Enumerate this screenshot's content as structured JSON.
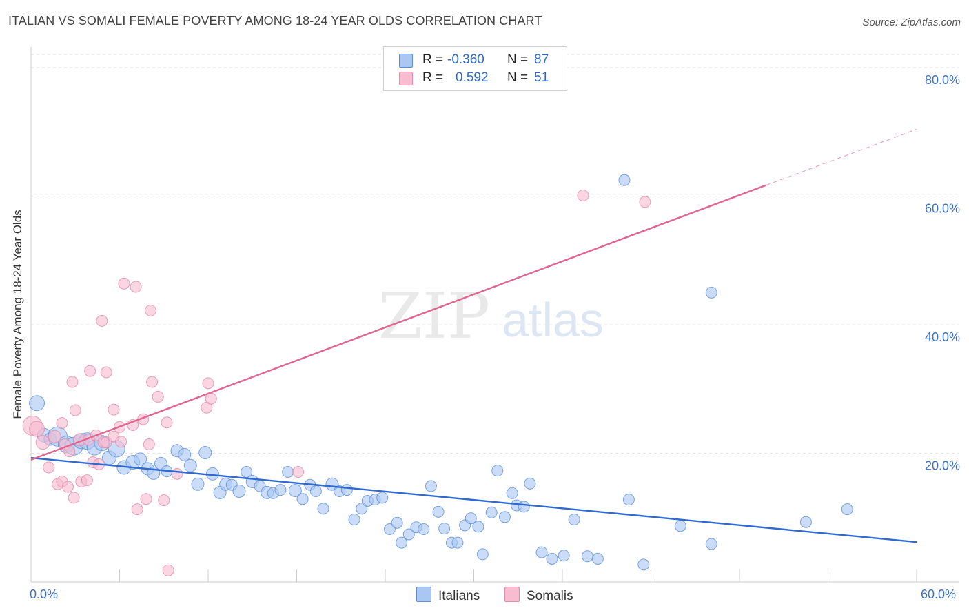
{
  "title": "ITALIAN VS SOMALI FEMALE POVERTY AMONG 18-24 YEAR OLDS CORRELATION CHART",
  "source": "Source: ZipAtlas.com",
  "watermark": {
    "zip": "ZIP",
    "atlas": "atlas"
  },
  "colors": {
    "italians_fill": "#a9c7f2",
    "italians_stroke": "#5b8fd9",
    "italians_line": "#2e6ad0",
    "somalis_fill": "#f7bcd0",
    "somalis_stroke": "#e58aa8",
    "somalis_line": "#e0658f",
    "axis_blue": "#3a6fc6",
    "grid": "#e2e2e2"
  },
  "legend_top": {
    "italians": {
      "r_label": "R =",
      "r_value": "-0.360",
      "n_label": "N =",
      "n_value": "87"
    },
    "somalis": {
      "r_label": "R =",
      "r_value": "0.592",
      "n_label": "N =",
      "n_value": "51"
    }
  },
  "legend_bottom": {
    "italians": "Italians",
    "somalis": "Somalis"
  },
  "chart_data": {
    "type": "scatter",
    "xlabel": "",
    "ylabel": "Female Poverty Among 18-24 Year Olds",
    "xlim": [
      0,
      60
    ],
    "ylim": [
      0,
      83
    ],
    "x_tick_labels": {
      "left": "0.0%",
      "right": "60.0%"
    },
    "y_ticks": [
      {
        "value": 20,
        "label": "20.0%"
      },
      {
        "value": 40,
        "label": "40.0%"
      },
      {
        "value": 60,
        "label": "60.0%"
      },
      {
        "value": 80,
        "label": "80.0%"
      }
    ],
    "grid": true,
    "series": [
      {
        "name": "Italians",
        "trend": {
          "x0": 0,
          "y0": 19.3,
          "x1": 60,
          "y1": 6.2,
          "dashed_to": null
        },
        "points": [
          [
            0.4,
            27.8,
            11
          ],
          [
            0.9,
            22.8,
            10
          ],
          [
            1.3,
            22.2,
            9
          ],
          [
            1.8,
            22.6,
            14
          ],
          [
            2.4,
            21.4,
            12
          ],
          [
            2.9,
            21.1,
            13
          ],
          [
            3.4,
            21.9,
            11
          ],
          [
            3.8,
            21.9,
            12
          ],
          [
            4.3,
            20.9,
            11
          ],
          [
            4.8,
            21.6,
            11
          ],
          [
            5.3,
            19.3,
            10
          ],
          [
            5.8,
            20.7,
            12
          ],
          [
            6.3,
            17.8,
            10
          ],
          [
            6.9,
            18.6,
            10
          ],
          [
            7.4,
            19.1,
            9
          ],
          [
            7.9,
            17.6,
            9
          ],
          [
            8.3,
            16.9,
            9
          ],
          [
            8.8,
            18.4,
            9
          ],
          [
            9.2,
            17.2,
            8
          ],
          [
            9.9,
            20.4,
            9
          ],
          [
            10.4,
            19.8,
            9
          ],
          [
            10.8,
            18.1,
            9
          ],
          [
            11.3,
            15.2,
            9
          ],
          [
            11.8,
            20.1,
            9
          ],
          [
            12.3,
            16.8,
            9
          ],
          [
            12.8,
            13.9,
            9
          ],
          [
            13.2,
            15.2,
            9
          ],
          [
            13.6,
            15.1,
            8
          ],
          [
            14.1,
            14.1,
            9
          ],
          [
            14.6,
            17.1,
            8
          ],
          [
            15.0,
            15.6,
            9
          ],
          [
            15.5,
            14.9,
            8
          ],
          [
            16.0,
            13.9,
            9
          ],
          [
            16.4,
            13.8,
            8
          ],
          [
            16.9,
            14.3,
            8
          ],
          [
            17.4,
            17.1,
            8
          ],
          [
            17.9,
            14.2,
            9
          ],
          [
            18.4,
            12.9,
            8
          ],
          [
            18.9,
            15.1,
            8
          ],
          [
            19.3,
            14.1,
            8
          ],
          [
            19.8,
            11.4,
            8
          ],
          [
            20.4,
            15.2,
            9
          ],
          [
            20.9,
            14.1,
            8
          ],
          [
            21.4,
            14.3,
            8
          ],
          [
            21.9,
            9.7,
            8
          ],
          [
            22.4,
            11.4,
            8
          ],
          [
            22.8,
            12.6,
            8
          ],
          [
            23.3,
            12.8,
            8
          ],
          [
            23.8,
            13.1,
            8
          ],
          [
            24.3,
            8.2,
            8
          ],
          [
            24.8,
            9.2,
            8
          ],
          [
            25.1,
            6.1,
            8
          ],
          [
            25.6,
            7.4,
            8
          ],
          [
            26.1,
            8.5,
            8
          ],
          [
            26.6,
            8.2,
            8
          ],
          [
            27.1,
            14.9,
            8
          ],
          [
            27.6,
            10.9,
            8
          ],
          [
            28.0,
            8.3,
            8
          ],
          [
            28.5,
            6.1,
            8
          ],
          [
            28.9,
            6.1,
            8
          ],
          [
            29.4,
            8.8,
            8
          ],
          [
            29.8,
            9.9,
            8
          ],
          [
            30.3,
            8.6,
            8
          ],
          [
            30.6,
            4.3,
            8
          ],
          [
            31.2,
            10.8,
            8
          ],
          [
            31.6,
            17.3,
            8
          ],
          [
            32.1,
            10.1,
            8
          ],
          [
            32.6,
            13.8,
            8
          ],
          [
            32.9,
            11.9,
            8
          ],
          [
            33.4,
            11.7,
            8
          ],
          [
            33.8,
            15.3,
            8
          ],
          [
            34.6,
            4.6,
            8
          ],
          [
            35.3,
            3.6,
            8
          ],
          [
            36.1,
            4.1,
            8
          ],
          [
            36.8,
            9.7,
            8
          ],
          [
            37.7,
            4.0,
            8
          ],
          [
            38.4,
            3.6,
            8
          ],
          [
            40.2,
            62.5,
            8
          ],
          [
            40.5,
            12.8,
            8
          ],
          [
            41.5,
            2.7,
            8
          ],
          [
            44.0,
            8.7,
            8
          ],
          [
            46.1,
            5.9,
            8
          ],
          [
            46.1,
            45.0,
            8
          ],
          [
            52.5,
            9.3,
            8
          ],
          [
            55.3,
            11.3,
            8
          ]
        ]
      },
      {
        "name": "Somalis",
        "trend": {
          "x0": 0,
          "y0": 19.0,
          "x1": 49.8,
          "y1": 61.7,
          "dashed_to": {
            "x": 60,
            "y": 70.4
          }
        },
        "points": [
          [
            0.1,
            24.3,
            14
          ],
          [
            0.4,
            23.8,
            11
          ],
          [
            0.8,
            21.7,
            10
          ],
          [
            1.2,
            17.8,
            8
          ],
          [
            1.6,
            22.6,
            9
          ],
          [
            1.8,
            15.2,
            8
          ],
          [
            2.1,
            15.6,
            8
          ],
          [
            2.1,
            24.7,
            8
          ],
          [
            2.3,
            21.4,
            8
          ],
          [
            2.5,
            14.8,
            8
          ],
          [
            2.6,
            20.3,
            8
          ],
          [
            2.8,
            31.1,
            8
          ],
          [
            2.9,
            13.1,
            8
          ],
          [
            3.0,
            26.7,
            8
          ],
          [
            3.3,
            22.1,
            9
          ],
          [
            3.4,
            15.6,
            8
          ],
          [
            3.8,
            15.8,
            8
          ],
          [
            3.9,
            22.1,
            8
          ],
          [
            4.0,
            32.8,
            8
          ],
          [
            4.2,
            18.6,
            8
          ],
          [
            4.4,
            22.8,
            8
          ],
          [
            4.6,
            18.3,
            8
          ],
          [
            4.9,
            21.7,
            8
          ],
          [
            4.8,
            40.6,
            8
          ],
          [
            5.1,
            21.7,
            8
          ],
          [
            5.1,
            32.6,
            8
          ],
          [
            5.6,
            22.6,
            8
          ],
          [
            5.6,
            26.8,
            8
          ],
          [
            6.0,
            24.1,
            8
          ],
          [
            6.1,
            21.8,
            8
          ],
          [
            6.3,
            46.4,
            8
          ],
          [
            6.9,
            24.4,
            8
          ],
          [
            7.1,
            45.9,
            8
          ],
          [
            7.2,
            11.3,
            8
          ],
          [
            7.6,
            25.3,
            8
          ],
          [
            7.8,
            12.9,
            8
          ],
          [
            8.0,
            21.4,
            8
          ],
          [
            8.1,
            42.2,
            8
          ],
          [
            8.2,
            31.1,
            8
          ],
          [
            8.6,
            28.8,
            8
          ],
          [
            9.0,
            12.7,
            8
          ],
          [
            9.2,
            24.8,
            8
          ],
          [
            9.3,
            1.8,
            8
          ],
          [
            9.9,
            16.8,
            8
          ],
          [
            11.9,
            27.1,
            8
          ],
          [
            12.0,
            30.9,
            8
          ],
          [
            12.2,
            28.5,
            8
          ],
          [
            18.1,
            17.1,
            8
          ],
          [
            37.4,
            60.1,
            8
          ],
          [
            41.6,
            59.1,
            8
          ]
        ]
      }
    ]
  }
}
